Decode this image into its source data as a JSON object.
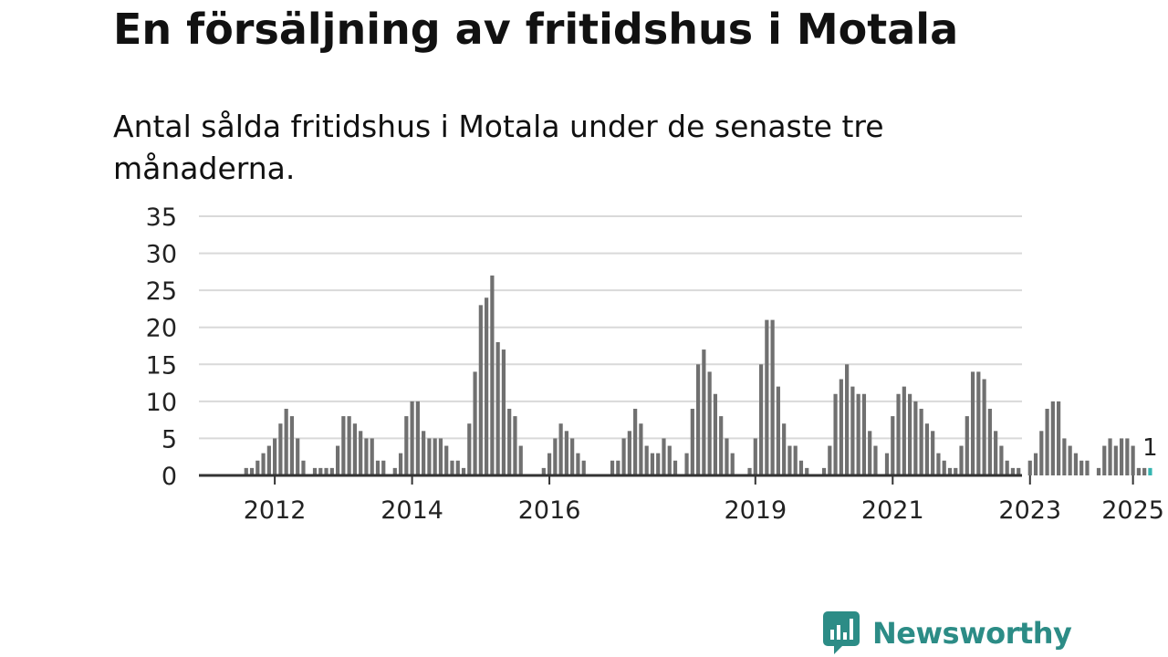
{
  "title": "En försäljning av fritidshus i Motala",
  "subtitle": "Antal sålda fritidshus i Motala under de senaste tre månaderna.",
  "brand": {
    "name": "Newsworthy",
    "color": "#2c8c86",
    "icon": "newsworthy-logo-icon"
  },
  "chart_data": {
    "type": "bar",
    "x_start": "2012-01",
    "frequency": "monthly",
    "values": [
      0,
      1,
      1,
      2,
      3,
      4,
      5,
      7,
      9,
      8,
      5,
      2,
      0,
      1,
      1,
      1,
      1,
      4,
      8,
      8,
      7,
      6,
      5,
      5,
      2,
      2,
      0,
      1,
      3,
      8,
      10,
      10,
      6,
      5,
      5,
      5,
      4,
      2,
      2,
      1,
      7,
      14,
      23,
      24,
      27,
      18,
      17,
      9,
      8,
      4,
      0,
      0,
      0,
      1,
      3,
      5,
      7,
      6,
      5,
      3,
      2,
      0,
      0,
      0,
      0,
      2,
      2,
      5,
      6,
      9,
      7,
      4,
      3,
      3,
      5,
      4,
      2,
      0,
      3,
      9,
      15,
      17,
      14,
      11,
      8,
      5,
      3,
      0,
      0,
      1,
      5,
      15,
      21,
      21,
      12,
      7,
      4,
      4,
      2,
      1,
      0,
      0,
      1,
      4,
      11,
      13,
      15,
      12,
      11,
      11,
      6,
      4,
      0,
      3,
      8,
      11,
      12,
      11,
      10,
      9,
      7,
      6,
      3,
      2,
      1,
      1,
      4,
      8,
      14,
      14,
      13,
      9,
      6,
      4,
      2,
      1,
      1,
      0,
      2,
      3,
      6,
      9,
      10,
      10,
      5,
      4,
      3,
      2,
      2,
      0,
      1,
      4,
      5,
      4,
      5,
      5,
      4,
      1,
      1,
      1
    ],
    "highlight_last": true,
    "highlight_label": "1",
    "highlight_color": "#35b5b0",
    "bar_color": "#707070",
    "y_ticks": [
      "0",
      "5",
      "10",
      "15",
      "20",
      "25",
      "30",
      "35"
    ],
    "ylim": [
      0,
      35
    ],
    "x_ticks": [
      {
        "label": "2012",
        "date": "2012-07"
      },
      {
        "label": "2014",
        "date": "2014-07"
      },
      {
        "label": "2016",
        "date": "2016-07"
      },
      {
        "label": "2019",
        "date": "2019-07"
      },
      {
        "label": "2021",
        "date": "2021-07"
      },
      {
        "label": "2023",
        "date": "2023-07"
      },
      {
        "label": "2025",
        "date": "2025-01"
      }
    ],
    "grid": true,
    "xlabel": "",
    "ylabel": ""
  }
}
